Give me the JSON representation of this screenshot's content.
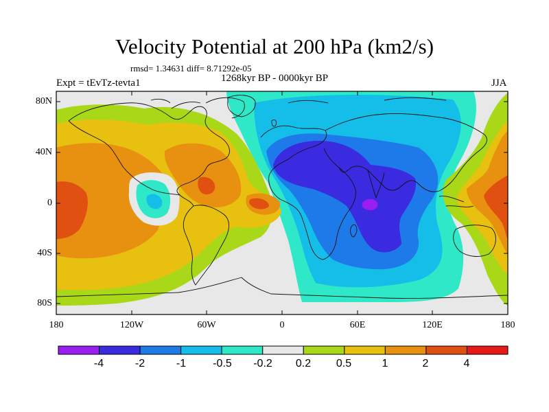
{
  "title": "Velocity Potential at 200 hPa (km2/s)",
  "stats": "rmsd= 1.34631 diff= 8.71292e-05",
  "period": "1268kyr BP - 0000kyr BP",
  "experiment": "Expt = tEvTz-tevta1",
  "season": "JJA",
  "axes": {
    "lat_labels": [
      "80N",
      "40N",
      "0",
      "40S",
      "80S"
    ],
    "lon_labels": [
      "180",
      "120W",
      "60W",
      "0",
      "60E",
      "120E",
      "180"
    ]
  },
  "colorbar": {
    "labels": [
      "-4",
      "-2",
      "-1",
      "-0.5",
      "-0.2",
      "0.2",
      "0.5",
      "1",
      "2",
      "4"
    ],
    "colors": [
      "#9b1ef0",
      "#3a2ae0",
      "#1e7ae8",
      "#14bee8",
      "#2ee8c8",
      "#e8e8e8",
      "#a8d818",
      "#e8c010",
      "#e89010",
      "#e05010",
      "#e81818"
    ]
  },
  "chart_data": {
    "type": "heatmap",
    "title": "Velocity Potential at 200 hPa (km2/s)",
    "variable": "Velocity Potential at 200 hPa",
    "units": "km2/s",
    "xlim": [
      -180,
      180
    ],
    "ylim": [
      -90,
      90
    ],
    "levels": [
      -4,
      -2,
      -1,
      -0.5,
      -0.2,
      0.2,
      0.5,
      1,
      2,
      4
    ],
    "season": "JJA"
  }
}
